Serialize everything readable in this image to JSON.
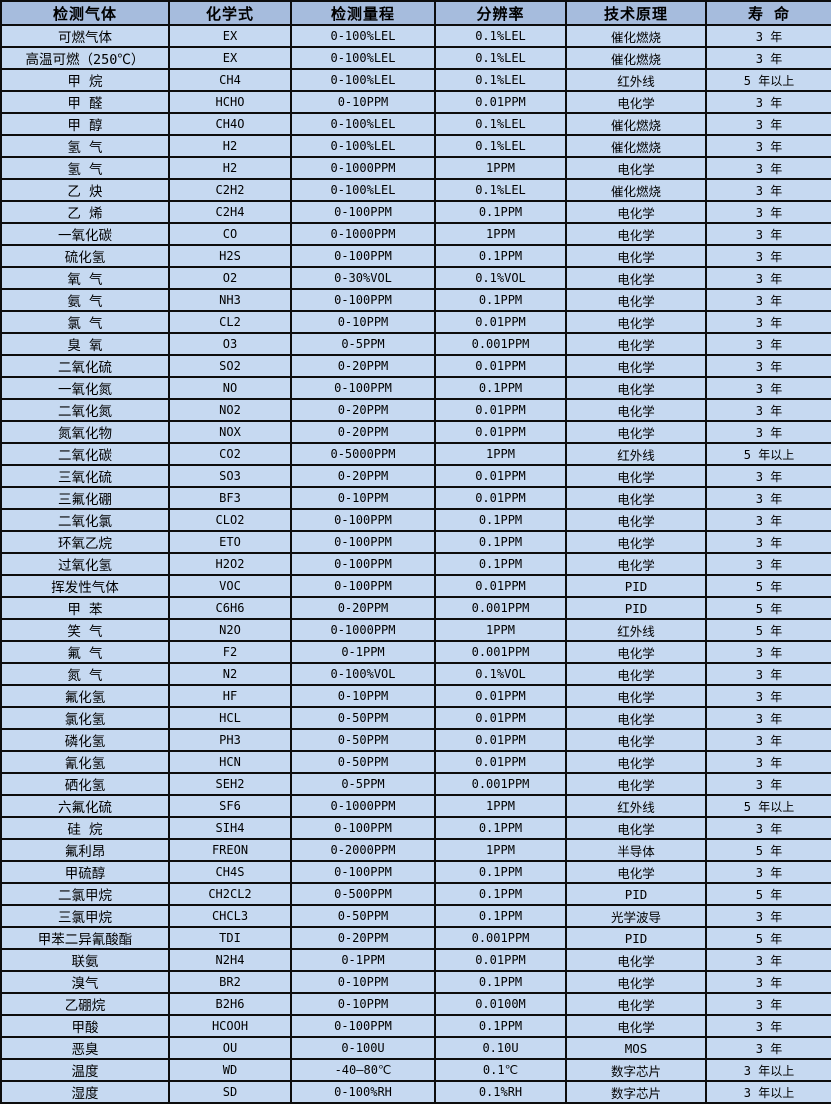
{
  "table": {
    "columns": [
      "检测气体",
      "化学式",
      "检测量程",
      "分辨率",
      "技术原理",
      "寿 命"
    ],
    "column_keys": [
      "gas",
      "formula",
      "range",
      "resolution",
      "principle",
      "lifespan"
    ],
    "rows": [
      [
        "可燃气体",
        "EX",
        "0-100%LEL",
        "0.1%LEL",
        "催化燃烧",
        "3 年"
      ],
      [
        "高温可燃（250℃）",
        "EX",
        "0-100%LEL",
        "0.1%LEL",
        "催化燃烧",
        "3 年"
      ],
      [
        "甲 烷",
        "CH4",
        "0-100%LEL",
        "0.1%LEL",
        "红外线",
        "5 年以上"
      ],
      [
        "甲 醛",
        "HCHO",
        "0-10PPM",
        "0.01PPM",
        "电化学",
        "3 年"
      ],
      [
        "甲 醇",
        "CH4O",
        "0-100%LEL",
        "0.1%LEL",
        "催化燃烧",
        "3 年"
      ],
      [
        "氢 气",
        "H2",
        "0-100%LEL",
        "0.1%LEL",
        "催化燃烧",
        "3 年"
      ],
      [
        "氢 气",
        "H2",
        "0-1000PPM",
        "1PPM",
        "电化学",
        "3 年"
      ],
      [
        "乙 炔",
        "C2H2",
        "0-100%LEL",
        "0.1%LEL",
        "催化燃烧",
        "3 年"
      ],
      [
        "乙 烯",
        "C2H4",
        "0-100PPM",
        "0.1PPM",
        "电化学",
        "3 年"
      ],
      [
        "一氧化碳",
        "CO",
        "0-1000PPM",
        "1PPM",
        "电化学",
        "3 年"
      ],
      [
        "硫化氢",
        "H2S",
        "0-100PPM",
        "0.1PPM",
        "电化学",
        "3 年"
      ],
      [
        "氧 气",
        "O2",
        "0-30%VOL",
        "0.1%VOL",
        "电化学",
        "3 年"
      ],
      [
        "氨 气",
        "NH3",
        "0-100PPM",
        "0.1PPM",
        "电化学",
        "3 年"
      ],
      [
        "氯 气",
        "CL2",
        "0-10PPM",
        "0.01PPM",
        "电化学",
        "3 年"
      ],
      [
        "臭 氧",
        "O3",
        "0-5PPM",
        "0.001PPM",
        "电化学",
        "3 年"
      ],
      [
        "二氧化硫",
        "SO2",
        "0-20PPM",
        "0.01PPM",
        "电化学",
        "3 年"
      ],
      [
        "一氧化氮",
        "NO",
        "0-100PPM",
        "0.1PPM",
        "电化学",
        "3 年"
      ],
      [
        "二氧化氮",
        "NO2",
        "0-20PPM",
        "0.01PPM",
        "电化学",
        "3 年"
      ],
      [
        "氮氧化物",
        "NOX",
        "0-20PPM",
        "0.01PPM",
        "电化学",
        "3 年"
      ],
      [
        "二氧化碳",
        "CO2",
        "0-5000PPM",
        "1PPM",
        "红外线",
        "5 年以上"
      ],
      [
        "三氧化硫",
        "SO3",
        "0-20PPM",
        "0.01PPM",
        "电化学",
        "3 年"
      ],
      [
        "三氟化硼",
        "BF3",
        "0-10PPM",
        "0.01PPM",
        "电化学",
        "3 年"
      ],
      [
        "二氧化氯",
        "CLO2",
        "0-100PPM",
        "0.1PPM",
        "电化学",
        "3 年"
      ],
      [
        "环氧乙烷",
        "ETO",
        "0-100PPM",
        "0.1PPM",
        "电化学",
        "3 年"
      ],
      [
        "过氧化氢",
        "H2O2",
        "0-100PPM",
        "0.1PPM",
        "电化学",
        "3 年"
      ],
      [
        "挥发性气体",
        "VOC",
        "0-100PPM",
        "0.01PPM",
        "PID",
        "5 年"
      ],
      [
        "甲 苯",
        "C6H6",
        "0-20PPM",
        "0.001PPM",
        "PID",
        "5 年"
      ],
      [
        "笑 气",
        "N2O",
        "0-1000PPM",
        "1PPM",
        "红外线",
        "5 年"
      ],
      [
        "氟 气",
        "F2",
        "0-1PPM",
        "0.001PPM",
        "电化学",
        "3 年"
      ],
      [
        "氮 气",
        "N2",
        "0-100%VOL",
        "0.1%VOL",
        "电化学",
        "3 年"
      ],
      [
        "氟化氢",
        "HF",
        "0-10PPM",
        "0.01PPM",
        "电化学",
        "3 年"
      ],
      [
        "氯化氢",
        "HCL",
        "0-50PPM",
        "0.01PPM",
        "电化学",
        "3 年"
      ],
      [
        "磷化氢",
        "PH3",
        "0-50PPM",
        "0.01PPM",
        "电化学",
        "3 年"
      ],
      [
        "氰化氢",
        "HCN",
        "0-50PPM",
        "0.01PPM",
        "电化学",
        "3 年"
      ],
      [
        "硒化氢",
        "SEH2",
        "0-5PPM",
        "0.001PPM",
        "电化学",
        "3 年"
      ],
      [
        "六氟化硫",
        "SF6",
        "0-1000PPM",
        "1PPM",
        "红外线",
        "5 年以上"
      ],
      [
        "硅 烷",
        "SIH4",
        "0-100PPM",
        "0.1PPM",
        "电化学",
        "3 年"
      ],
      [
        "氟利昂",
        "FREON",
        "0-2000PPM",
        "1PPM",
        "半导体",
        "5 年"
      ],
      [
        "甲硫醇",
        "CH4S",
        "0-100PPM",
        "0.1PPM",
        "电化学",
        "3 年"
      ],
      [
        "二氯甲烷",
        "CH2CL2",
        "0-500PPM",
        "0.1PPM",
        "PID",
        "5 年"
      ],
      [
        "三氯甲烷",
        "CHCL3",
        "0-50PPM",
        "0.1PPM",
        "光学波导",
        "3 年"
      ],
      [
        "甲苯二异氰酸酯",
        "TDI",
        "0-20PPM",
        "0.001PPM",
        "PID",
        "5 年"
      ],
      [
        "联氨",
        "N2H4",
        "0-1PPM",
        "0.01PPM",
        "电化学",
        "3 年"
      ],
      [
        "溴气",
        "BR2",
        "0-10PPM",
        "0.1PPM",
        "电化学",
        "3 年"
      ],
      [
        "乙硼烷",
        "B2H6",
        "0-10PPM",
        "0.0100M",
        "电化学",
        "3 年"
      ],
      [
        "甲酸",
        "HCOOH",
        "0-100PPM",
        "0.1PPM",
        "电化学",
        "3 年"
      ],
      [
        "恶臭",
        "OU",
        "0-100U",
        "0.10U",
        "MOS",
        "3 年"
      ],
      [
        "温度",
        "WD",
        "-40—80℃",
        "0.1℃",
        "数字芯片",
        "3 年以上"
      ],
      [
        "湿度",
        "SD",
        "0-100%RH",
        "0.1%RH",
        "数字芯片",
        "3 年以上"
      ]
    ]
  },
  "colors": {
    "header_bg": "#a6bcdd",
    "row_bg": "#c6d9f1",
    "border": "#0d0d0d",
    "text": "#000000"
  }
}
